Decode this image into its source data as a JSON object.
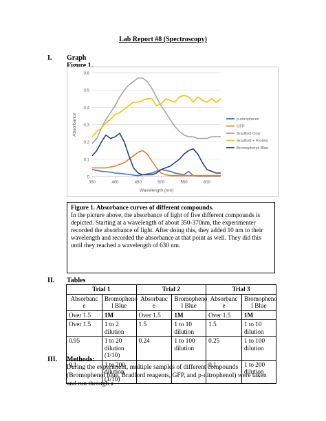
{
  "title": "Lab Report #8 (Spectroscopy)",
  "sections": {
    "graph": {
      "num": "I.",
      "heading": "Graph",
      "figure_label": "Figure 1."
    },
    "tables": {
      "num": "II.",
      "heading": "Tables"
    },
    "methods": {
      "num": "III.",
      "heading": "Methods:",
      "text": "During the experiment, multiple samples of different compounds (Bromophenol blue, Bradford reagents, GFP, and p-nitrophenol) were taken and run through a"
    }
  },
  "caption": {
    "title": "Figure 1. Absorbance curves of different compounds.",
    "text": "In the picture above, the absorbance of light of five different compounds is depicted. Starting at a wavelength of about 350-370nm, the experimenter recorded the absorbance of light. After doing this, they added 10 nm to their wavelength and recorded the absorbance at that point as well. They did this until they reached a wavelength of 630 nm."
  },
  "chart_data": {
    "type": "line",
    "xlabel": "Wavelength (nm)",
    "ylabel": "Absorbance",
    "xlim": [
      350,
      630
    ],
    "ylim": [
      0,
      0.6
    ],
    "xticks": [
      350,
      400,
      450,
      500,
      550,
      600
    ],
    "yticks": [
      0,
      0.1,
      0.2,
      0.3,
      0.4,
      0.5,
      0.6
    ],
    "grid": true,
    "legend": "right",
    "series": [
      {
        "name": "p-nitrophenol",
        "color": "#4472c4",
        "x": [
          350,
          360,
          370,
          380,
          390,
          400,
          410,
          420,
          430,
          440,
          450,
          460,
          470,
          480,
          490,
          500,
          510,
          520,
          530,
          540,
          550,
          560,
          570,
          580,
          590,
          600,
          610,
          620,
          630
        ],
        "y": [
          0.04,
          0.035,
          0.03,
          0.028,
          0.025,
          0.02,
          0.018,
          0.015,
          0.012,
          0.008,
          0.005,
          0.01,
          0.015,
          0.02,
          0.03,
          0.04,
          0.035,
          0.03,
          0.02,
          0.015,
          0.01,
          0.03,
          0.005,
          0.002,
          0.002,
          0.002,
          0.002,
          0.002,
          0.002
        ]
      },
      {
        "name": "GFP",
        "color": "#ed7d31",
        "x": [
          350,
          360,
          370,
          380,
          390,
          400,
          410,
          420,
          430,
          440,
          450,
          460,
          470,
          480,
          490,
          500,
          510,
          520,
          530,
          540,
          550,
          560,
          570,
          580,
          590,
          600,
          610,
          620,
          630
        ],
        "y": [
          0.05,
          0.05,
          0.05,
          0.05,
          0.055,
          0.06,
          0.07,
          0.08,
          0.1,
          0.12,
          0.14,
          0.15,
          0.13,
          0.09,
          0.05,
          0.02,
          0.01,
          0.005,
          0.005,
          0.005,
          0.005,
          0.005,
          0.005,
          0.005,
          0.005,
          0.005,
          0.005,
          0.005,
          0.005
        ]
      },
      {
        "name": "Bradford Only",
        "color": "#a5a5a5",
        "x": [
          350,
          360,
          370,
          380,
          390,
          400,
          410,
          420,
          430,
          440,
          450,
          460,
          470,
          480,
          490,
          500,
          510,
          520,
          530,
          540,
          550,
          560,
          570,
          580,
          590,
          600,
          610,
          620,
          630
        ],
        "y": [
          0.19,
          0.22,
          0.28,
          0.33,
          0.37,
          0.41,
          0.46,
          0.5,
          0.53,
          0.55,
          0.57,
          0.57,
          0.55,
          0.51,
          0.46,
          0.41,
          0.37,
          0.33,
          0.29,
          0.26,
          0.24,
          0.23,
          0.23,
          0.22,
          0.22,
          0.22,
          0.23,
          0.23,
          0.23
        ]
      },
      {
        "name": "Bradford + Protein",
        "color": "#ffc000",
        "x": [
          350,
          360,
          370,
          380,
          390,
          400,
          410,
          420,
          430,
          440,
          450,
          460,
          470,
          480,
          490,
          500,
          510,
          520,
          530,
          540,
          550,
          560,
          570,
          580,
          590,
          600,
          610,
          620,
          630
        ],
        "y": [
          0.23,
          0.26,
          0.28,
          0.31,
          0.33,
          0.36,
          0.37,
          0.39,
          0.41,
          0.43,
          0.43,
          0.44,
          0.45,
          0.45,
          0.41,
          0.42,
          0.45,
          0.44,
          0.43,
          0.46,
          0.47,
          0.46,
          0.43,
          0.46,
          0.44,
          0.43,
          0.45,
          0.43,
          0.45
        ]
      },
      {
        "name": "Bromophenol Blue",
        "color": "#264478",
        "x": [
          350,
          360,
          370,
          380,
          390,
          400,
          410,
          420,
          430,
          440,
          450,
          460,
          470,
          480,
          490,
          500,
          510,
          520,
          530,
          540,
          550,
          560,
          570,
          580,
          590,
          600,
          610,
          620,
          630
        ],
        "y": [
          0.12,
          0.15,
          0.2,
          0.24,
          0.22,
          0.23,
          0.25,
          0.2,
          0.12,
          0.05,
          0.02,
          0.01,
          0.01,
          0.01,
          0.02,
          0.04,
          0.05,
          0.06,
          0.08,
          0.1,
          0.13,
          0.15,
          0.16,
          0.13,
          0.08,
          0.04,
          0.03,
          0.02,
          0.02
        ]
      }
    ]
  },
  "table": {
    "trials": [
      "Trial 1",
      "Trial 2",
      "Trial 3"
    ],
    "sub_headers": [
      "Absorbanc e",
      "Bromopheno l Blue",
      "Absorbanc e",
      "Bromopheno l Blue",
      "Absorbanc e",
      "Bromopheno l Blue"
    ],
    "rows": [
      [
        "Over 1.5",
        "1M",
        "Over 1.5",
        "1M",
        "Over 1.5",
        "1M"
      ],
      [
        "Over 1.5",
        "1 to 2 dilution",
        "1.5",
        "1 to 10 dilution",
        "1.5",
        "1 to 10 dilution"
      ],
      [
        "0.95",
        "1 to 20 dilution (1/10)",
        "0.24",
        "1 to 100 dilution",
        "0.25",
        "1 to 100 dilution"
      ],
      [
        "0.1",
        "1 to 200 dilution (1/10)",
        "",
        "",
        "0.1",
        "1 to 200 dilution"
      ]
    ]
  }
}
